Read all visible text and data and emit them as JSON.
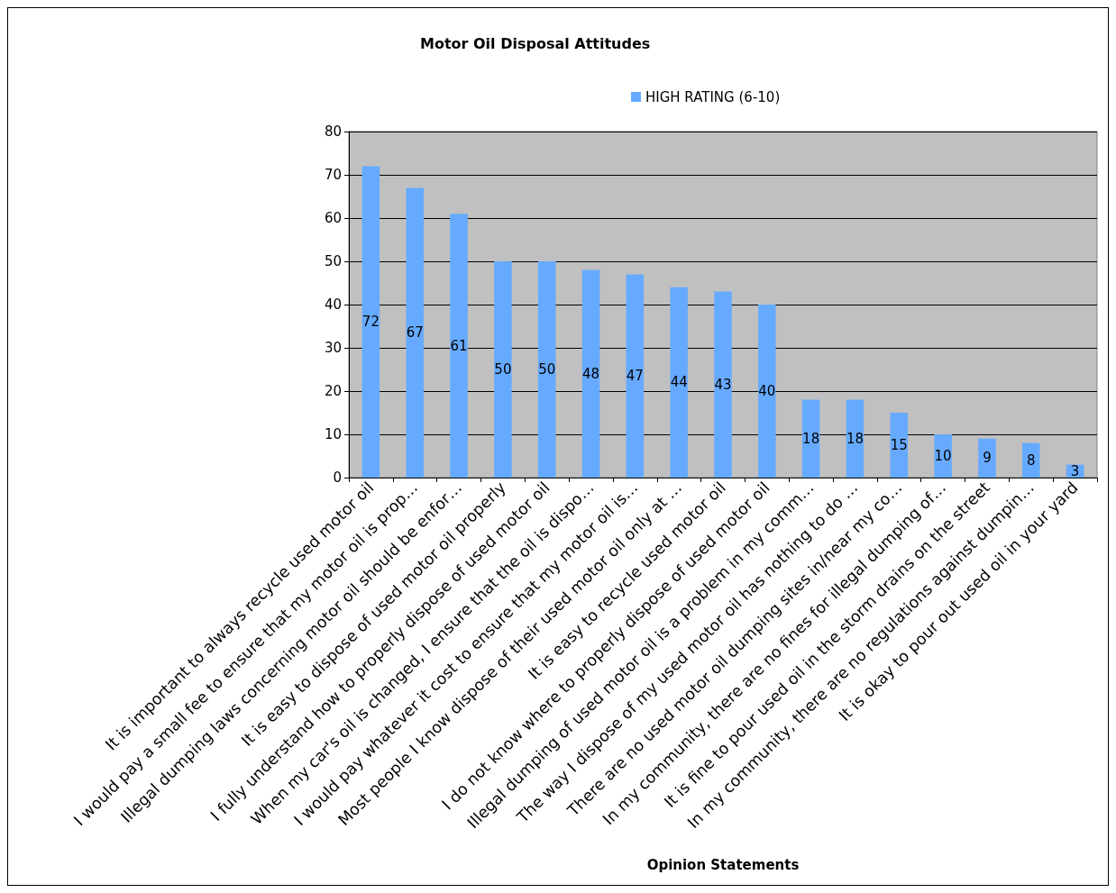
{
  "chart_data": {
    "type": "bar",
    "title": "Motor Oil Disposal Attitudes",
    "xlabel": "Opinion Statements",
    "categories": [
      "It is important to always recycle used motor oil",
      "I would pay a small fee to ensure that my motor oil is prop…",
      "Illegal dumping laws concerning motor oil should be enfor…",
      "It is easy to dispose of used motor oil properly",
      "I fully understand how to properly dispose of used motor oil",
      "When my car's oil is changed, I ensure that the oil is dispo…",
      "I would pay whatever it cost to ensure that my motor oil is…",
      "Most people I know dispose of their used motor oil only at …",
      "It is easy to recycle used motor oil",
      "I do not know where to properly dispose of used motor oil",
      "Illegal dumping of used motor oil is a problem in my comm…",
      "The way I dispose of my used motor oil has nothing to do …",
      "There are no used motor oil dumping sites in/near my co…",
      "In my community, there are no fines for illegal dumping of…",
      "It is fine to pour used oil in the storm drains on the street",
      "In my community, there are no regulations against dumpin…",
      "It is okay to pour out used oil in your yard"
    ],
    "series": [
      {
        "name": "HIGH RATING (6-10)",
        "color": "#66aaff",
        "values": [
          72,
          67,
          61,
          50,
          50,
          48,
          47,
          44,
          43,
          40,
          18,
          18,
          15,
          10,
          9,
          8,
          3
        ]
      }
    ],
    "ylim": [
      0,
      80
    ],
    "yticks": [
      0,
      10,
      20,
      30,
      40,
      50,
      60,
      70,
      80
    ],
    "grid": "y",
    "legend": "top right",
    "data_labels": true
  }
}
